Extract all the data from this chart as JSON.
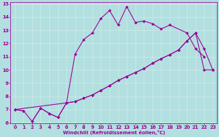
{
  "xlabel": "Windchill (Refroidissement éolien,°C)",
  "x": [
    0,
    1,
    2,
    3,
    4,
    5,
    6,
    7,
    8,
    9,
    10,
    11,
    12,
    13,
    14,
    15,
    16,
    17,
    18,
    19,
    20,
    21,
    22,
    23
  ],
  "line_top": [
    7.0,
    6.9,
    null,
    null,
    null,
    null,
    null,
    null,
    null,
    null,
    null,
    null,
    null,
    null,
    null,
    null,
    null,
    null,
    null,
    null,
    null,
    null,
    null,
    null
  ],
  "line_mid": [
    7.0,
    6.9,
    6.1,
    7.1,
    6.7,
    6.4,
    7.5,
    11.2,
    12.3,
    12.8,
    13.9,
    14.5,
    13.4,
    14.8,
    13.6,
    13.7,
    13.5,
    13.1,
    13.4,
    null,
    12.8,
    11.6,
    11.0,
    null
  ],
  "line_low1": [
    7.0,
    null,
    null,
    null,
    null,
    null,
    7.5,
    7.6,
    7.85,
    8.1,
    8.45,
    8.8,
    9.2,
    9.5,
    9.8,
    10.1,
    10.5,
    10.85,
    11.15,
    11.5,
    12.2,
    12.8,
    11.6,
    10.0
  ],
  "line_low2": [
    null,
    null,
    6.1,
    7.1,
    6.7,
    6.4,
    7.5,
    7.6,
    7.85,
    8.1,
    8.45,
    8.8,
    9.2,
    9.5,
    9.8,
    10.1,
    10.5,
    10.85,
    11.15,
    11.5,
    12.2,
    12.8,
    10.0,
    10.0
  ],
  "line_color": "#990099",
  "bg_color": "#b2dfdf",
  "grid_color": "#d4eded",
  "ylim": [
    6,
    15
  ],
  "yticks": [
    6,
    7,
    8,
    9,
    10,
    11,
    12,
    13,
    14,
    15
  ],
  "xlim": [
    -0.5,
    23.5
  ],
  "xticks": [
    0,
    1,
    2,
    3,
    4,
    5,
    6,
    7,
    8,
    9,
    10,
    11,
    12,
    13,
    14,
    15,
    16,
    17,
    18,
    19,
    20,
    21,
    22,
    23
  ],
  "markersize": 2.0,
  "linewidth": 0.8
}
